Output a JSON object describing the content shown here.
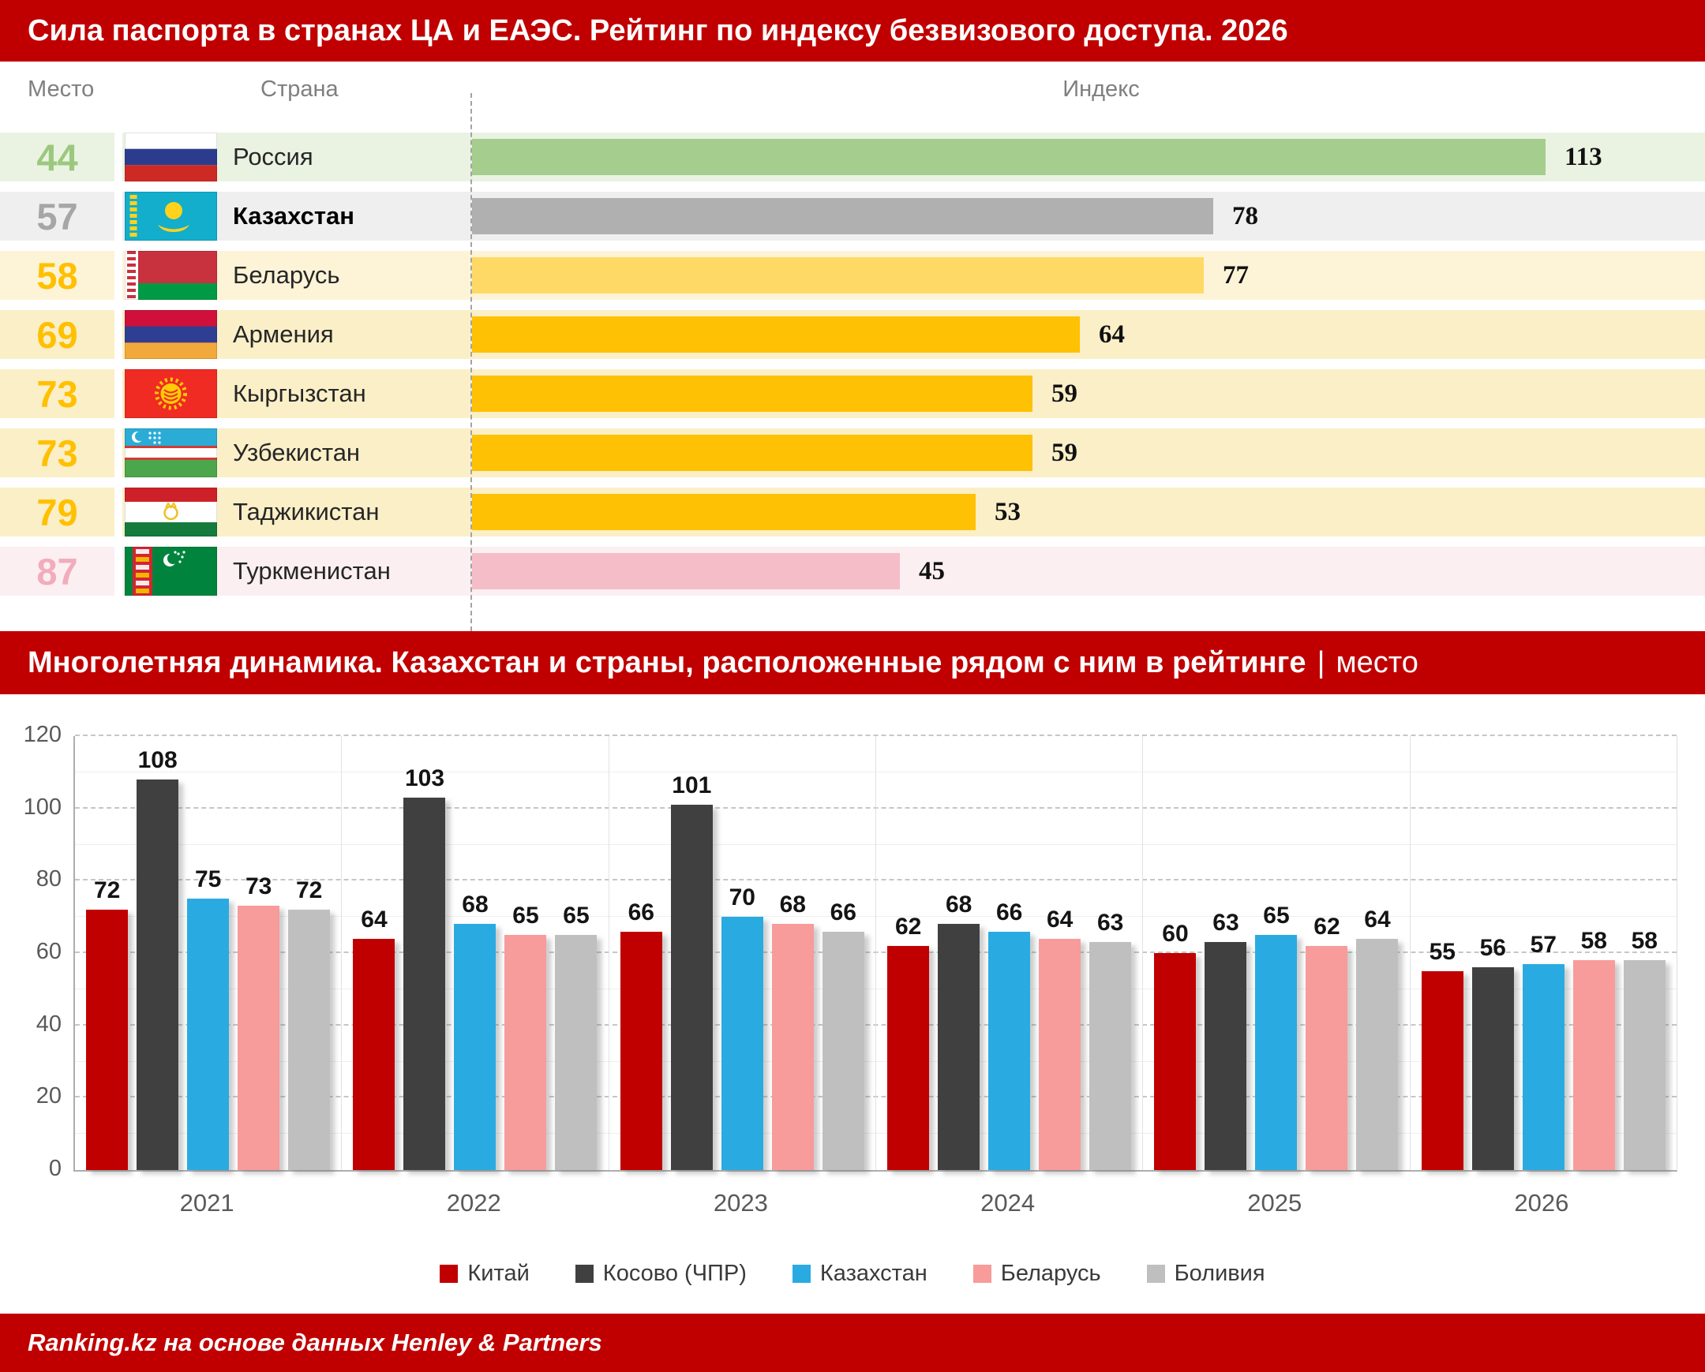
{
  "header": {
    "title": "Сила паспорта в странах ЦА и ЕАЭС. Рейтинг по индексу безвизового доступа. 2026"
  },
  "table": {
    "columns": {
      "place": "Место",
      "country": "Страна",
      "index": "Индекс"
    },
    "max_index": 113,
    "rows": [
      {
        "key": "russia",
        "place": "44",
        "country": "Россия",
        "index": 113,
        "row_bg": "#EAF3E2",
        "bar": "#A5CD8D",
        "num": "#9CC87E",
        "name_bold": false
      },
      {
        "key": "kazakhstan",
        "place": "57",
        "country": "Казахстан",
        "index": 78,
        "row_bg": "#EFEFEF",
        "bar": "#B0B0B0",
        "num": "#A6A6A6",
        "name_bold": true
      },
      {
        "key": "belarus",
        "place": "58",
        "country": "Беларусь",
        "index": 77,
        "row_bg": "#FDF4D7",
        "bar": "#FFD966",
        "num": "#FFC000",
        "name_bold": false
      },
      {
        "key": "armenia",
        "place": "69",
        "country": "Армения",
        "index": 64,
        "row_bg": "#FBEFC8",
        "bar": "#FFC103",
        "num": "#FFC000",
        "name_bold": false
      },
      {
        "key": "kyrgyzstan",
        "place": "73",
        "country": "Кыргызстан",
        "index": 59,
        "row_bg": "#FBEFC8",
        "bar": "#FFC103",
        "num": "#FFC000",
        "name_bold": false
      },
      {
        "key": "uzbekistan",
        "place": "73",
        "country": "Узбекистан",
        "index": 59,
        "row_bg": "#FBEFC8",
        "bar": "#FFC103",
        "num": "#FFC000",
        "name_bold": false
      },
      {
        "key": "tajikistan",
        "place": "79",
        "country": "Таджикистан",
        "index": 53,
        "row_bg": "#FBEFC8",
        "bar": "#FFC103",
        "num": "#FFC000",
        "name_bold": false
      },
      {
        "key": "turkmenistan",
        "place": "87",
        "country": "Туркменистан",
        "index": 45,
        "row_bg": "#FBEFF1",
        "bar": "#F5BDC8",
        "num": "#F2ACBC",
        "name_bold": false
      }
    ]
  },
  "chart_header": {
    "title": "Многолетняя динамика. Казахстан и страны, расположенные рядом с ним в рейтинге",
    "divider": "|",
    "unit": "место"
  },
  "chart_data": {
    "type": "bar",
    "categories": [
      "2021",
      "2022",
      "2023",
      "2024",
      "2025",
      "2026"
    ],
    "series": [
      {
        "key": "china",
        "name": "Китай",
        "color": "#C00000",
        "values": [
          72,
          64,
          66,
          62,
          60,
          55
        ]
      },
      {
        "key": "kosovo",
        "name": "Косово (ЧПР)",
        "color": "#404040",
        "values": [
          108,
          103,
          101,
          68,
          63,
          56
        ]
      },
      {
        "key": "kazakhstan",
        "name": "Казахстан",
        "color": "#29ABE2",
        "values": [
          75,
          68,
          70,
          66,
          65,
          57
        ]
      },
      {
        "key": "belarus",
        "name": "Беларусь",
        "color": "#F89B9B",
        "values": [
          73,
          65,
          68,
          64,
          62,
          58
        ]
      },
      {
        "key": "bolivia",
        "name": "Боливия",
        "color": "#BFBFBF",
        "values": [
          72,
          65,
          66,
          63,
          64,
          58
        ]
      }
    ],
    "ylim": [
      0,
      120
    ],
    "yticks": [
      0,
      20,
      40,
      60,
      80,
      100,
      120
    ],
    "grid": "minor solid every 10, major dashed every 20",
    "legend_position": "bottom"
  },
  "footer": {
    "source": "Ranking.kz на основе данных Henley & Partners"
  }
}
